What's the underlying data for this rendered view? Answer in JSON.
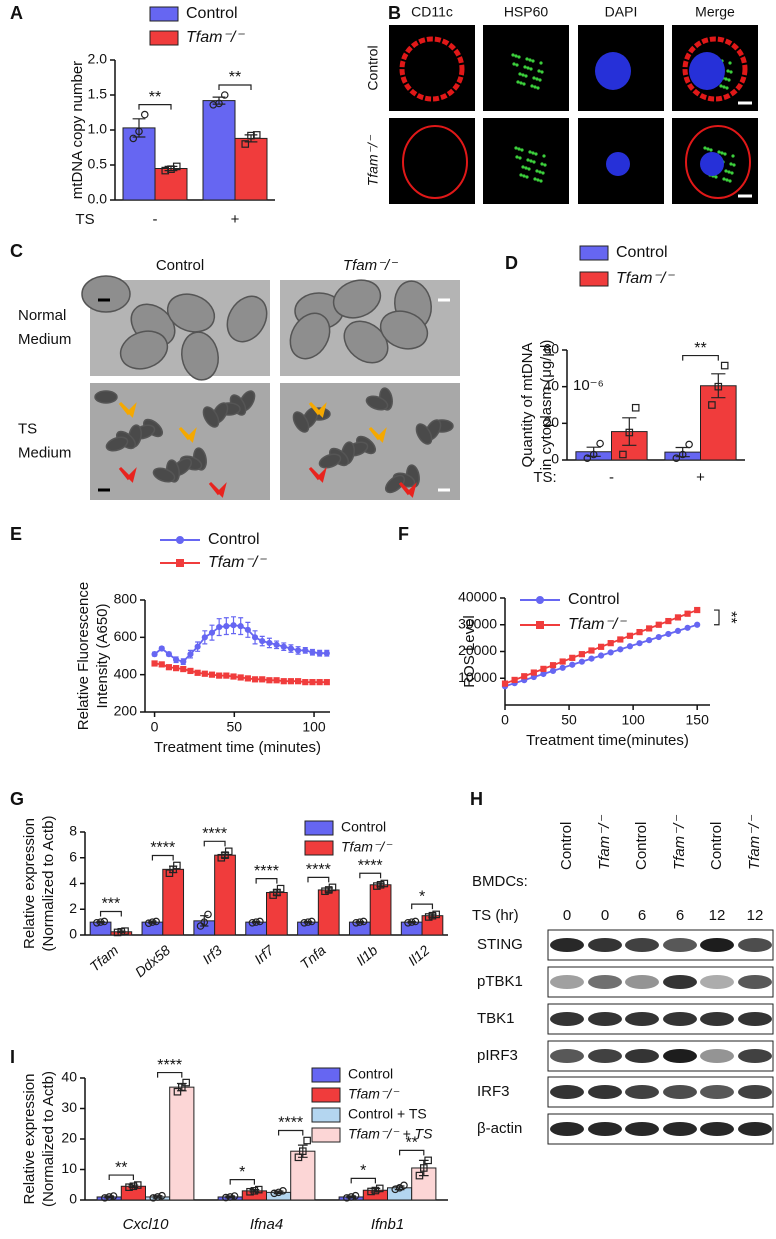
{
  "chart_data": [
    {
      "label": "A",
      "type": "bar",
      "ylabel": [
        "mtDNA copy number"
      ],
      "xlabel": "TS",
      "categories": [
        "-",
        "+"
      ],
      "series": [
        {
          "name": "Control",
          "color": "#6666f2",
          "marker": "circle",
          "values": [
            1.03,
            1.42
          ],
          "errors": [
            0.13,
            0.05
          ],
          "points": [
            [
              0.88,
              0.98,
              1.22
            ],
            [
              1.36,
              1.38,
              1.5
            ]
          ]
        },
        {
          "name": "Tfam⁻/⁻",
          "color": "#f03c3c",
          "marker": "square",
          "values": [
            0.45,
            0.88
          ],
          "errors": [
            0.03,
            0.05
          ],
          "points": [
            [
              0.42,
              0.44,
              0.48
            ],
            [
              0.8,
              0.92,
              0.93
            ]
          ]
        }
      ],
      "significance": [
        "**",
        "**"
      ],
      "ylim": [
        0,
        2
      ],
      "yticks": [
        {
          "value": 0,
          "label": "0.0"
        },
        {
          "value": 0.5,
          "label": "0.5"
        },
        {
          "value": 1,
          "label": "1.0"
        },
        {
          "value": 1.5,
          "label": "1.5"
        },
        {
          "value": 2,
          "label": "2.0"
        }
      ]
    },
    {
      "label": "D",
      "type": "bar",
      "ylabel": [
        "Quantity of mtDNA",
        "in cytoplasm (μg/μl)"
      ],
      "annotation": "10⁻⁶",
      "xlabel": "TS:",
      "categories": [
        "-",
        "+"
      ],
      "series": [
        {
          "name": "Control",
          "color": "#6666f2",
          "marker": "circle",
          "values": [
            4.5,
            4.3
          ],
          "errors": [
            2.5,
            2.5
          ],
          "points": [
            [
              1,
              3,
              9
            ],
            [
              1,
              3,
              8.5
            ]
          ]
        },
        {
          "name": "Tfam⁻/⁻",
          "color": "#f03c3c",
          "marker": "square",
          "values": [
            15.5,
            40.5
          ],
          "errors": [
            7.5,
            6.5
          ],
          "points": [
            [
              3,
              15,
              28.5
            ],
            [
              30,
              40,
              51.5
            ]
          ]
        }
      ],
      "significance": [
        null,
        "**"
      ],
      "ylim": [
        0,
        60
      ],
      "yticks": [
        0,
        20,
        40,
        60
      ]
    },
    {
      "label": "E",
      "type": "line",
      "ylabel": [
        "Relative  Fluorescence",
        "Intensity (A650)"
      ],
      "xlabel": "Treatment time (minutes)",
      "x": [
        0,
        4.5,
        9,
        13.5,
        18,
        22.5,
        27,
        31.5,
        36,
        40.5,
        45,
        49.5,
        54,
        58.5,
        63,
        67.5,
        72,
        76.5,
        81,
        85.5,
        90,
        94.5,
        99,
        103.5,
        108
      ],
      "series": [
        {
          "name": "Control",
          "color": "#6666f2",
          "marker": "circle",
          "values": [
            510,
            540,
            510,
            480,
            470,
            510,
            550,
            600,
            625,
            655,
            660,
            665,
            660,
            640,
            600,
            580,
            570,
            560,
            550,
            540,
            530,
            530,
            520,
            515,
            515
          ],
          "errors": [
            10,
            10,
            10,
            15,
            15,
            20,
            25,
            35,
            40,
            45,
            45,
            45,
            45,
            40,
            35,
            25,
            25,
            20,
            20,
            20,
            20,
            15,
            15,
            15,
            15
          ]
        },
        {
          "name": "Tfam⁻/⁻",
          "color": "#f03c3c",
          "marker": "square",
          "values": [
            460,
            455,
            440,
            435,
            430,
            420,
            410,
            405,
            400,
            395,
            395,
            390,
            385,
            380,
            375,
            375,
            370,
            370,
            365,
            365,
            365,
            360,
            360,
            360,
            360
          ]
        }
      ],
      "xlim": [
        -6,
        110
      ],
      "xticks": [
        0,
        50,
        100
      ],
      "ylim": [
        200,
        800
      ],
      "yticks": [
        200,
        400,
        600,
        800
      ]
    },
    {
      "label": "F",
      "type": "line",
      "ylabel": [
        "ROS Level"
      ],
      "xlabel": "Treatment time(minutes)",
      "significance": "**",
      "x": [
        0,
        7.5,
        15,
        22.5,
        30,
        37.5,
        45,
        52.5,
        60,
        67.5,
        75,
        82.5,
        90,
        97.5,
        105,
        112.5,
        120,
        127.5,
        135,
        142.5,
        150
      ],
      "series": [
        {
          "name": "Control",
          "color": "#6666f2",
          "marker": "circle",
          "values": [
            7000,
            8150,
            9300,
            10450,
            11600,
            12750,
            13900,
            15050,
            16200,
            17350,
            18500,
            19650,
            20800,
            21950,
            23100,
            24250,
            25400,
            26550,
            27700,
            28850,
            30000
          ]
        },
        {
          "name": "Tfam⁻/⁻",
          "color": "#f03c3c",
          "marker": "square",
          "values": [
            8000,
            9375,
            10750,
            12125,
            13500,
            14875,
            16250,
            17625,
            19000,
            20375,
            21750,
            23125,
            24500,
            25875,
            27250,
            28625,
            30000,
            31375,
            32750,
            34125,
            35500
          ]
        }
      ],
      "xlim": [
        0,
        160
      ],
      "xticks": [
        0,
        50,
        100,
        150
      ],
      "ylim": [
        0,
        40000
      ],
      "yticks": [
        10000,
        20000,
        30000,
        40000
      ]
    },
    {
      "label": "G",
      "type": "bar",
      "ylabel": [
        "Relative expression",
        "(Normalized to Actb)"
      ],
      "categories": [
        "Tfam",
        "Ddx58",
        "Irf3",
        "Irf7",
        "Tnfa",
        "Il1b",
        "Il12"
      ],
      "series": [
        {
          "name": "Control",
          "color": "#6666f2",
          "marker": "circle",
          "values": [
            1.0,
            1.0,
            1.1,
            1.0,
            1.0,
            1.0,
            1.0
          ],
          "errors": [
            0.05,
            0.08,
            0.4,
            0.05,
            0.05,
            0.05,
            0.05
          ],
          "points": [
            [
              0.95,
              1.0,
              1.05
            ],
            [
              0.92,
              1.0,
              1.05
            ],
            [
              0.7,
              1.0,
              1.6
            ],
            [
              0.95,
              1.0,
              1.05
            ],
            [
              0.95,
              1.0,
              1.05
            ],
            [
              0.95,
              1.0,
              1.05
            ],
            [
              0.95,
              1.0,
              1.05
            ]
          ]
        },
        {
          "name": "Tfam⁻/⁻",
          "color": "#f03c3c",
          "marker": "square",
          "values": [
            0.25,
            5.1,
            6.2,
            3.3,
            3.5,
            3.9,
            1.5
          ],
          "errors": [
            0.05,
            0.25,
            0.2,
            0.2,
            0.15,
            0.12,
            0.12
          ],
          "points": [
            [
              0.2,
              0.25,
              0.3
            ],
            [
              4.8,
              5.1,
              5.4
            ],
            [
              6.0,
              6.2,
              6.5
            ],
            [
              3.1,
              3.3,
              3.6
            ],
            [
              3.4,
              3.5,
              3.7
            ],
            [
              3.8,
              3.9,
              4.0
            ],
            [
              1.4,
              1.5,
              1.6
            ]
          ]
        }
      ],
      "significance": [
        "***",
        "****",
        "****",
        "****",
        "****",
        "****",
        "*"
      ],
      "ylim": [
        0,
        8
      ],
      "yticks": [
        0,
        2,
        4,
        6,
        8
      ]
    },
    {
      "label": "I",
      "type": "bar",
      "ylabel": [
        "Relative expression",
        "(Normalized to Actb)"
      ],
      "categories": [
        "Cxcl10",
        "Ifna4",
        "Ifnb1"
      ],
      "series": [
        {
          "name": "Control",
          "color": "#6666f2",
          "marker": "circle",
          "values": [
            1.0,
            1.0,
            1.0
          ],
          "errors": [
            0.3,
            0.3,
            0.3
          ],
          "points": [
            [
              0.7,
              1.0,
              1.3
            ],
            [
              0.8,
              1.0,
              1.3
            ],
            [
              0.7,
              1.0,
              1.4
            ]
          ]
        },
        {
          "name": "Tfam⁻/⁻",
          "color": "#f03c3c",
          "marker": "square",
          "values": [
            4.5,
            3.0,
            3.2
          ],
          "errors": [
            0.4,
            0.4,
            0.6
          ],
          "points": [
            [
              4.2,
              4.5,
              4.9
            ],
            [
              2.7,
              3.0,
              3.4
            ],
            [
              2.8,
              3.1,
              3.8
            ]
          ]
        },
        {
          "name": "Control + TS",
          "color": "#b4d6f0",
          "marker": "circle",
          "values": [
            1.0,
            2.5,
            4.0
          ],
          "errors": [
            0.4,
            0.4,
            0.6
          ],
          "points": [
            [
              0.7,
              1.0,
              1.4
            ],
            [
              2.2,
              2.5,
              3.0
            ],
            [
              3.5,
              4.0,
              4.8
            ]
          ]
        },
        {
          "name": "Tfam⁻/⁻ + TS",
          "color": "#fcd6d6",
          "marker": "square",
          "values": [
            37,
            16,
            10.5
          ],
          "errors": [
            1.2,
            2.0,
            2.5
          ],
          "points": [
            [
              35.5,
              37,
              38.5
            ],
            [
              14,
              16,
              19.5
            ],
            [
              8,
              10.5,
              13
            ]
          ]
        }
      ],
      "significance": [
        [
          "**",
          "****"
        ],
        [
          "*",
          "****"
        ],
        [
          "*",
          "**"
        ]
      ],
      "ylim": [
        0,
        40
      ],
      "yticks": [
        0,
        10,
        20,
        30,
        40
      ]
    }
  ],
  "panel_b": {
    "label": "B",
    "columns": [
      "CD11c",
      "HSP60",
      "DAPI",
      "Merge"
    ],
    "rows": [
      "Control",
      "Tfam⁻/⁻"
    ]
  },
  "panel_c": {
    "label": "C",
    "columns": [
      "Control",
      "Tfam⁻/⁻"
    ],
    "rows": [
      [
        "Normal",
        "Medium"
      ],
      [
        "TS",
        "Medium"
      ]
    ]
  },
  "panel_h": {
    "label": "H",
    "row_title": "BMDCs:",
    "lanes": [
      "Control",
      "Tfam⁻/⁻",
      "Control",
      "Tfam⁻/⁻",
      "Control",
      "Tfam⁻/⁻"
    ],
    "ts_title": "TS (hr)",
    "ts": [
      0,
      0,
      6,
      6,
      12,
      12
    ],
    "blots": [
      "STING",
      "pTBK1",
      "TBK1",
      "pIRF3",
      "IRF3",
      "β-actin"
    ]
  }
}
